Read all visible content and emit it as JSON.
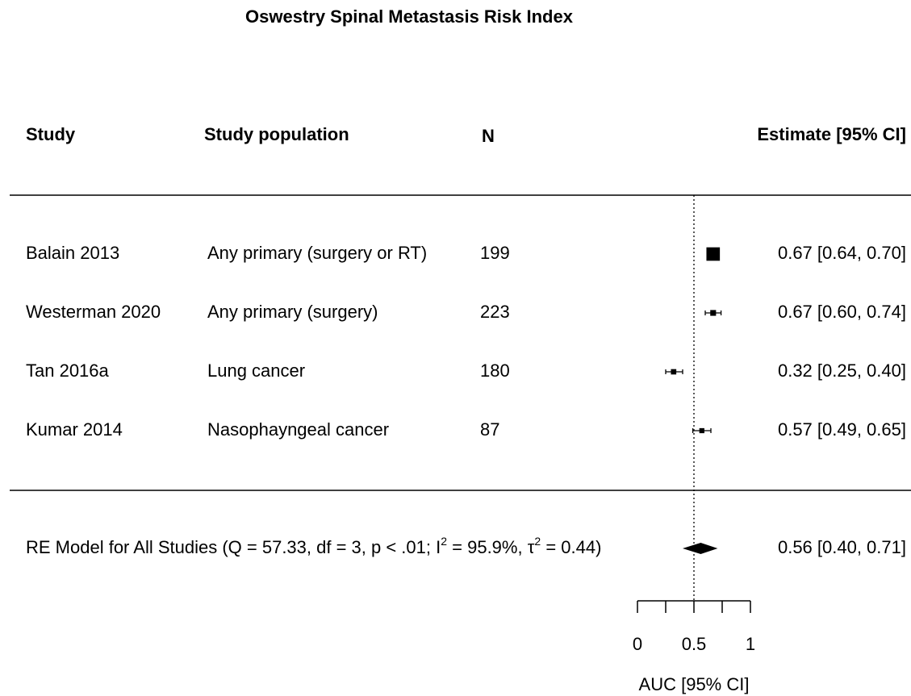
{
  "chart_data": {
    "type": "forest",
    "title": "Oswestry Spinal Metastasis Risk Index",
    "headers": [
      "Study",
      "Study population",
      "N",
      "Estimate [95% CI]"
    ],
    "studies": [
      "Balain 2013",
      "Westerman 2020",
      "Tan 2016a",
      "Kumar 2014"
    ],
    "populations": [
      "Any primary (surgery or RT)",
      "Any primary (surgery)",
      "Lung cancer",
      "Nasophayngeal cancer"
    ],
    "n": [
      199,
      223,
      180,
      87
    ],
    "estimates": [
      0.67,
      0.67,
      0.32,
      0.57
    ],
    "ci_lower": [
      0.64,
      0.6,
      0.25,
      0.49
    ],
    "ci_upper": [
      0.7,
      0.74,
      0.4,
      0.65
    ],
    "value_labels": [
      "0.67 [0.64, 0.70]",
      "0.67 [0.60, 0.74]",
      "0.32 [0.25, 0.40]",
      "0.57 [0.49, 0.65]"
    ],
    "summary_label": [
      "RE Model for All Studies (Q = 57.33, df = 3, p < .01; I",
      "2",
      " = 95.9%, τ",
      "2",
      " = 0.44)"
    ],
    "summary_estimate": 0.56,
    "summary_lower": 0.4,
    "summary_upper": 0.71,
    "summary_value_label": "0.56 [0.40, 0.71]",
    "refline": 0.5,
    "xlim": [
      0,
      1
    ],
    "xticks": [
      0,
      0.5,
      1
    ],
    "xminorticks": [
      0.25,
      0.75
    ],
    "xlabel": "AUC [95% CI]",
    "color": "#000000"
  }
}
